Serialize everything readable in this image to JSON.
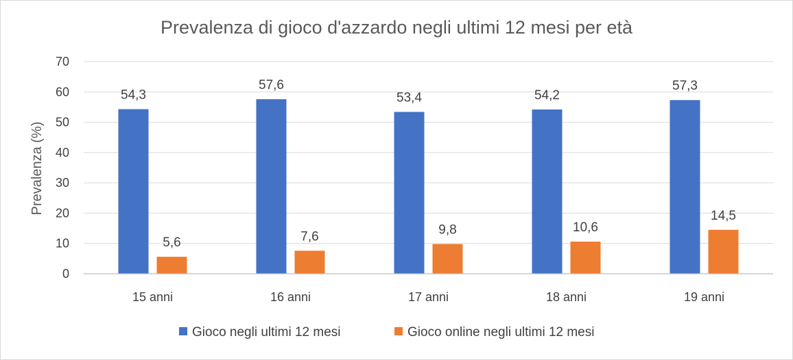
{
  "chart_data": {
    "type": "bar",
    "title": "Prevalenza di gioco d'azzardo negli ultimi 12 mesi per età",
    "xlabel": "",
    "ylabel": "Prevalenza (%)",
    "ylim": [
      0,
      70
    ],
    "yticks": [
      "0",
      "10",
      "20",
      "30",
      "40",
      "50",
      "60",
      "70"
    ],
    "categories": [
      "15 anni",
      "16 anni",
      "17 anni",
      "18 anni",
      "19 anni"
    ],
    "series": [
      {
        "name": "Gioco negli ultimi 12 mesi",
        "color": "#4472c4",
        "values": [
          54.3,
          57.6,
          53.4,
          54.2,
          57.3
        ],
        "labels": [
          "54,3",
          "57,6",
          "53,4",
          "54,2",
          "57,3"
        ]
      },
      {
        "name": "Gioco online negli ultimi 12 mesi",
        "color": "#ed7d31",
        "values": [
          5.6,
          7.6,
          9.8,
          10.6,
          14.5
        ],
        "labels": [
          "5,6",
          "7,6",
          "9,8",
          "10,6",
          "14,5"
        ]
      }
    ],
    "grid": true,
    "legend": "bottom"
  }
}
